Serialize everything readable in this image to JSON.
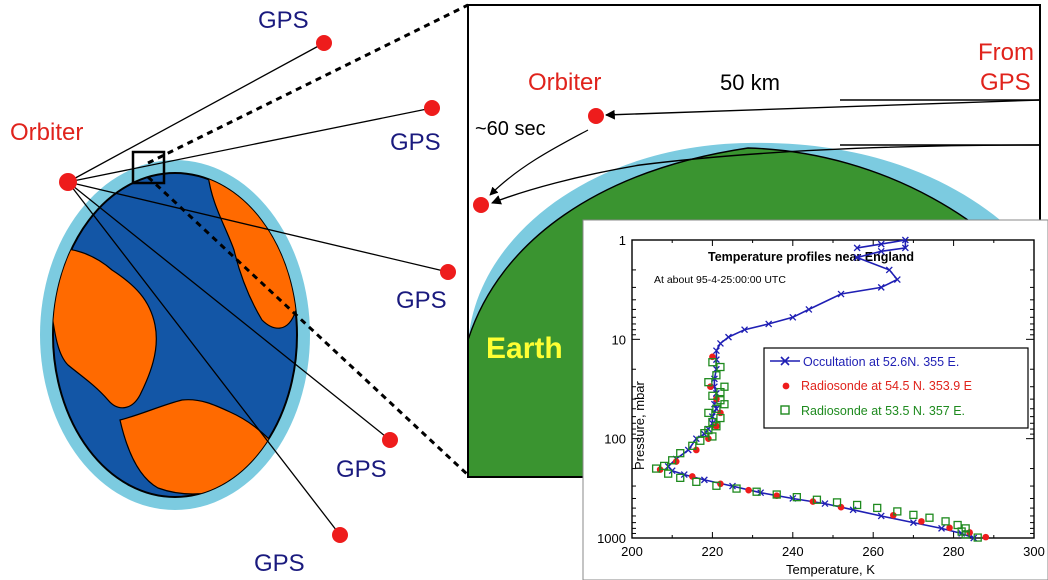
{
  "diagram": {
    "left_labels": {
      "orbiter": "Orbiter",
      "gps_top": "GPS",
      "gps_upper_right": "GPS",
      "gps_mid_right": "GPS",
      "gps_lower_right": "GPS",
      "gps_bottom": "GPS"
    },
    "zoom_labels": {
      "orbiter": "Orbiter",
      "from_gps_line1": "From",
      "from_gps_line2": "GPS",
      "altitude": "50 km",
      "time": "~60 sec",
      "earth": "Earth"
    },
    "colors": {
      "ocean": "#1356a6",
      "land": "#ff6a00",
      "atmosphere": "#7ccbe0",
      "zoom_earth": "#3a9430",
      "satellite": "#ee1c1c",
      "gps_text": "#1a1a7e",
      "orbiter_text": "#e0231c"
    }
  },
  "chart_data": {
    "type": "scatter",
    "title": "Temperature profiles near England",
    "subtitle": "At about 95-4-25:00:00 UTC",
    "xlabel": "Temperature, K",
    "ylabel": "Pressure, mbar",
    "xlim": [
      200,
      300
    ],
    "ylim": [
      1000,
      1
    ],
    "y_scale": "log",
    "x_ticks": [
      "200",
      "220",
      "240",
      "260",
      "280",
      "300"
    ],
    "y_ticks": [
      "1",
      "10",
      "100",
      "1000"
    ],
    "legend_placement": "center-right",
    "series": [
      {
        "name": "Occultation at 52.6N. 355 E.",
        "color": "#1f1fb4",
        "marker": "x-line",
        "points": [
          [
            256,
            1.2
          ],
          [
            262,
            1.1
          ],
          [
            268,
            1.0
          ],
          [
            268,
            1.2
          ],
          [
            262,
            1.3
          ],
          [
            256,
            1.5
          ],
          [
            264,
            2.0
          ],
          [
            266,
            2.5
          ],
          [
            262,
            3.0
          ],
          [
            252,
            3.5
          ],
          [
            244,
            5.0
          ],
          [
            240,
            6.0
          ],
          [
            234,
            7.0
          ],
          [
            228,
            8.0
          ],
          [
            224,
            9.5
          ],
          [
            222,
            11
          ],
          [
            221,
            13
          ],
          [
            221,
            16
          ],
          [
            221,
            20
          ],
          [
            220.5,
            25
          ],
          [
            220.5,
            30
          ],
          [
            221,
            35
          ],
          [
            221,
            40
          ],
          [
            220.5,
            45
          ],
          [
            221,
            50
          ],
          [
            220,
            60
          ],
          [
            220,
            70
          ],
          [
            219,
            80
          ],
          [
            218,
            90
          ],
          [
            216,
            100
          ],
          [
            214,
            130
          ],
          [
            211,
            160
          ],
          [
            209,
            190
          ],
          [
            210,
            210
          ],
          [
            213,
            230
          ],
          [
            218,
            260
          ],
          [
            225,
            300
          ],
          [
            232,
            350
          ],
          [
            240,
            400
          ],
          [
            248,
            450
          ],
          [
            255,
            520
          ],
          [
            262,
            600
          ],
          [
            270,
            700
          ],
          [
            277,
            800
          ],
          [
            282,
            900
          ],
          [
            285,
            1000
          ]
        ]
      },
      {
        "name": "Radiosonde at 54.5 N. 353.9 E",
        "color": "#ee1c1c",
        "marker": "dot",
        "points": [
          [
            220,
            15
          ],
          [
            219.5,
            30
          ],
          [
            221,
            40
          ],
          [
            222,
            55
          ],
          [
            221,
            75
          ],
          [
            219,
            100
          ],
          [
            216,
            130
          ],
          [
            211,
            170
          ],
          [
            207,
            205
          ],
          [
            215,
            240
          ],
          [
            222,
            285
          ],
          [
            229,
            330
          ],
          [
            236,
            375
          ],
          [
            245,
            430
          ],
          [
            252,
            490
          ],
          [
            265,
            590
          ],
          [
            272,
            680
          ],
          [
            279,
            790
          ],
          [
            284,
            880
          ],
          [
            288,
            980
          ]
        ]
      },
      {
        "name": "Radiosonde at 53.5 N. 357 E.",
        "color": "#1e8a1e",
        "marker": "open-square",
        "points": [
          [
            220,
            17
          ],
          [
            222,
            19
          ],
          [
            221,
            23
          ],
          [
            219,
            27
          ],
          [
            223,
            30
          ],
          [
            222,
            34
          ],
          [
            220,
            37
          ],
          [
            222,
            41
          ],
          [
            223,
            45
          ],
          [
            221,
            50
          ],
          [
            219,
            55
          ],
          [
            222,
            62
          ],
          [
            220,
            68
          ],
          [
            221,
            75
          ],
          [
            219,
            82
          ],
          [
            218,
            88
          ],
          [
            220,
            95
          ],
          [
            217,
            105
          ],
          [
            215,
            118
          ],
          [
            212,
            140
          ],
          [
            210,
            165
          ],
          [
            208,
            188
          ],
          [
            206,
            200
          ],
          [
            209,
            225
          ],
          [
            212,
            248
          ],
          [
            216,
            272
          ],
          [
            221,
            298
          ],
          [
            226,
            318
          ],
          [
            231,
            342
          ],
          [
            236,
            365
          ],
          [
            241,
            388
          ],
          [
            246,
            412
          ],
          [
            251,
            438
          ],
          [
            256,
            465
          ],
          [
            261,
            498
          ],
          [
            266,
            540
          ],
          [
            270,
            585
          ],
          [
            274,
            625
          ],
          [
            278,
            680
          ],
          [
            281,
            740
          ],
          [
            283,
            800
          ],
          [
            282,
            860
          ],
          [
            283,
            920
          ],
          [
            286,
            990
          ]
        ]
      }
    ]
  }
}
